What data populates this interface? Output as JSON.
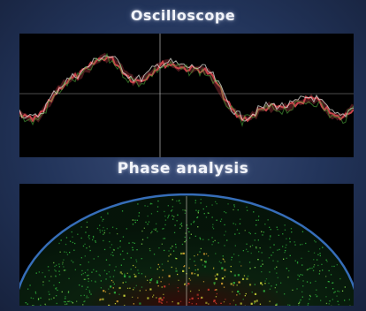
{
  "oscilloscope": {
    "title": "Oscilloscope",
    "colors": {
      "background": "#000000",
      "trace_primary": "#c8434a",
      "trace_secondary": "#e0e0d8",
      "trace_accent": "#4fae3c",
      "gridline": "#d8d8d8"
    }
  },
  "phase_analysis": {
    "title": "Phase analysis",
    "colors": {
      "background": "#000000",
      "dome_edge": "#3f7fd8",
      "particles_outer": "#2fae3a",
      "particles_mid": "#c7d236",
      "particles_core": "#d83a2e",
      "center_line": "#e8e2d0"
    }
  }
}
